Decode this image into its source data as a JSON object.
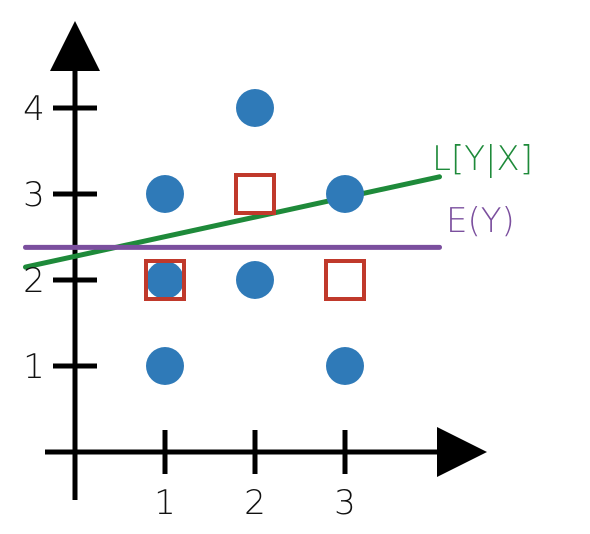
{
  "chart_data": {
    "type": "scatter",
    "title": "",
    "xlabel": "",
    "ylabel": "",
    "xlim": [
      -1.0,
      4.5
    ],
    "ylim": [
      -0.4,
      4.85
    ],
    "x_ticks": [
      "1",
      "2",
      "3"
    ],
    "y_ticks": [
      "1",
      "2",
      "3",
      "4"
    ],
    "grid": false,
    "series": [
      {
        "marker": "circle",
        "color": "#2f7ab8",
        "points": [
          {
            "x": 1,
            "y": 1
          },
          {
            "x": 1,
            "y": 2
          },
          {
            "x": 1,
            "y": 3
          },
          {
            "x": 2,
            "y": 2
          },
          {
            "x": 2,
            "y": 4
          },
          {
            "x": 3,
            "y": 1
          },
          {
            "x": 3,
            "y": 3
          }
        ]
      },
      {
        "marker": "square",
        "color": "#c0392b",
        "points": [
          {
            "x": 1,
            "y": 2
          },
          {
            "x": 2,
            "y": 3
          },
          {
            "x": 3,
            "y": 2
          }
        ]
      }
    ],
    "lines": [
      {
        "name": "L[Y|X]",
        "color": "#1e8a3a",
        "from": {
          "x": -0.55,
          "y": 2.15
        },
        "to": {
          "x": 4.05,
          "y": 3.2
        }
      },
      {
        "name": "E(Y)",
        "color": "#7b4f9e",
        "from": {
          "x": -0.55,
          "y": 2.38
        },
        "to": {
          "x": 4.05,
          "y": 2.38
        }
      }
    ]
  }
}
